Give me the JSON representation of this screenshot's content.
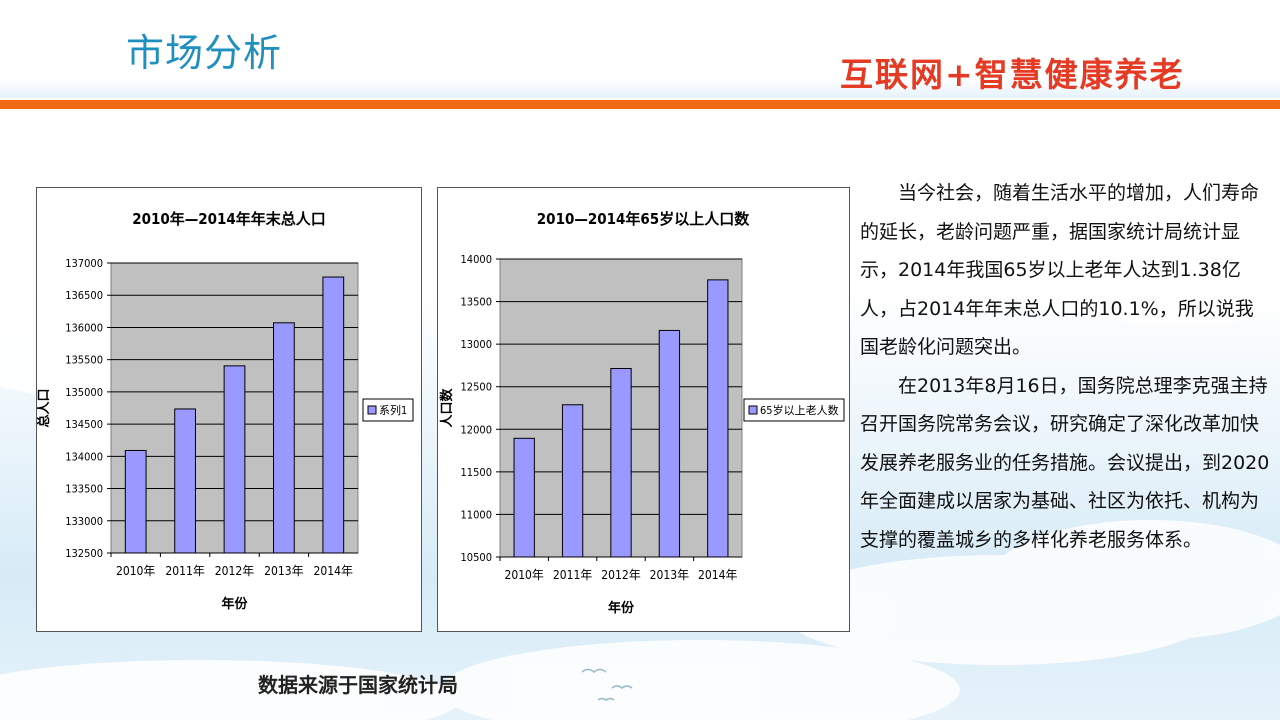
{
  "page": {
    "title": "市场分析",
    "slogan": "互联网+智慧健康养老",
    "source_note": "数据来源于国家统计局"
  },
  "text": {
    "paragraphs": [
      "当今社会，随着生活水平的增加，人们寿命的延长，老龄问题严重，据国家统计局统计显示，2014年我国65岁以上老年人达到1.38亿人，占2014年年末总人口的10.1%，所以说我国老龄化问题突出。",
      "在2013年8月16日，国务院总理李克强主持召开国务院常务会议，研究确定了深化改革加快发展养老服务业的任务措施。会议提出，到2020年全面建成以居家为基础、社区为依托、机构为支撑的覆盖城乡的多样化养老服务体系。"
    ]
  },
  "colors": {
    "accent_blue": "#1f8fc0",
    "accent_orange": "#ef6a13",
    "slogan_red": "#e53a24",
    "bar_fill": "#9999ff",
    "plot_bg": "#c0c0c0"
  },
  "chart_data": [
    {
      "type": "bar",
      "title": "2010年—2014年年末总人口",
      "xlabel": "年份",
      "ylabel": "总人口",
      "categories": [
        "2010年",
        "2011年",
        "2012年",
        "2013年",
        "2014年"
      ],
      "series": [
        {
          "name": "系列1",
          "values": [
            134091,
            134735,
            135404,
            136072,
            136782
          ]
        }
      ],
      "ylim": [
        132500,
        137000
      ],
      "yticks": [
        132500,
        133000,
        133500,
        134000,
        134500,
        135000,
        135500,
        136000,
        136500,
        137000
      ],
      "grid": true,
      "legend": "right"
    },
    {
      "type": "bar",
      "title": "2010—2014年65岁以上人口数",
      "xlabel": "年份",
      "ylabel": "人口数",
      "categories": [
        "2010年",
        "2011年",
        "2012年",
        "2013年",
        "2014年"
      ],
      "series": [
        {
          "name": "65岁以上老人数",
          "values": [
            11894,
            12288,
            12714,
            13161,
            13755
          ]
        }
      ],
      "ylim": [
        10500,
        14000
      ],
      "yticks": [
        10500,
        11000,
        11500,
        12000,
        12500,
        13000,
        13500,
        14000
      ],
      "grid": true,
      "legend": "right"
    }
  ]
}
